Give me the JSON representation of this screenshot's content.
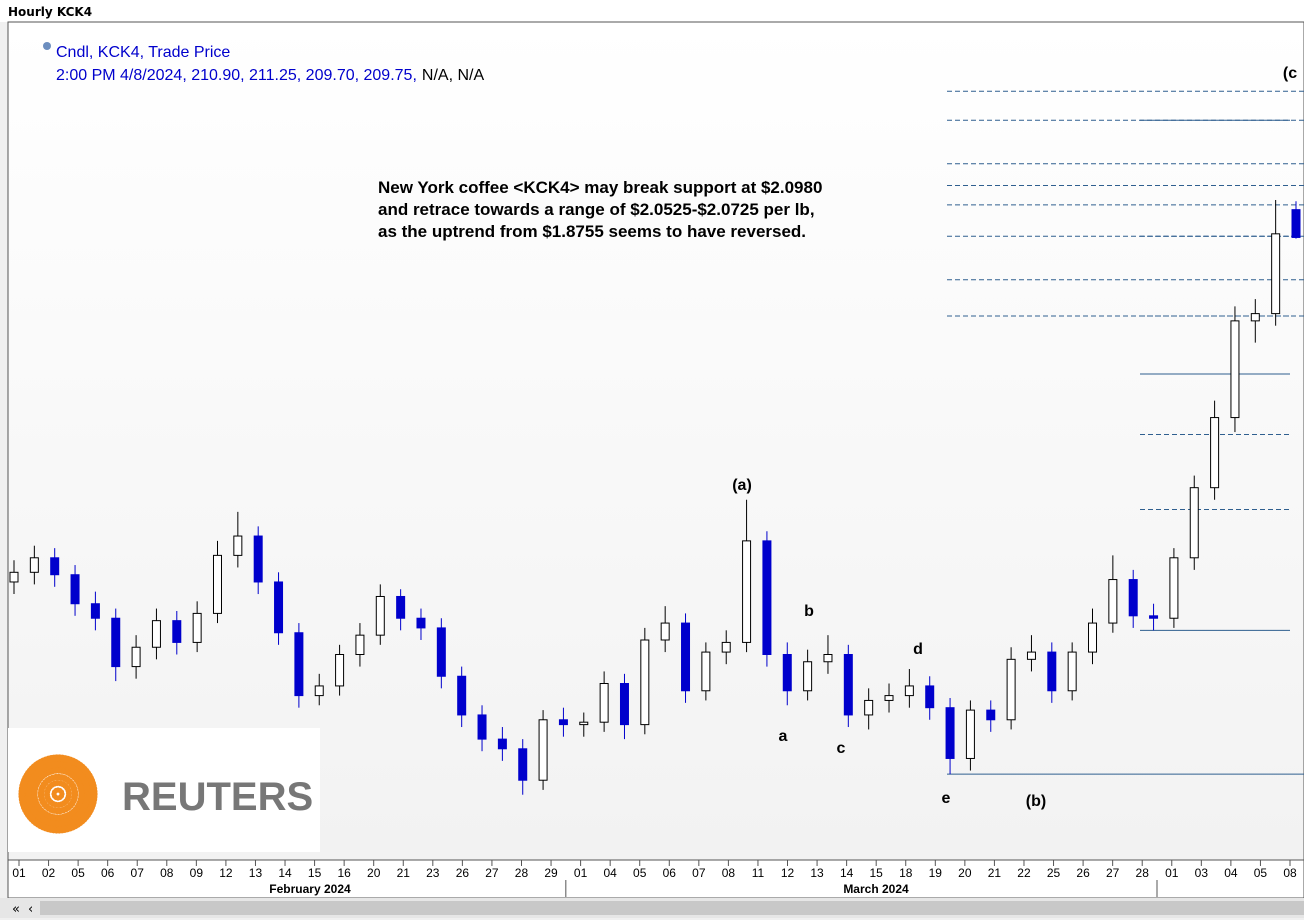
{
  "chart_data": {
    "type": "candlestick",
    "title": "Hourly KCK4",
    "legend_line1": "Cndl, KCK4, Trade Price",
    "legend_line2": "2:00 PM 4/8/2024, 210.90, 211.25, 209.70, 209.75,",
    "legend_line3": "N/A, N/A",
    "annotation": [
      "New York coffee <KCK4> may break support at $2.0980",
      "and retrace towards a range of $2.0525-$2.0725 per lb,",
      "as the uptrend from $1.8755 seems to have reversed."
    ],
    "wave_labels": [
      "(a)",
      "b",
      "a",
      "c",
      "d",
      "e",
      "(b)",
      "(c"
    ],
    "logo": "REUTERS",
    "x_labels": [
      "01",
      "02",
      "05",
      "06",
      "07",
      "08",
      "09",
      "12",
      "13",
      "14",
      "15",
      "16",
      "20",
      "21",
      "23",
      "26",
      "27",
      "28",
      "29",
      "01",
      "04",
      "05",
      "06",
      "07",
      "08",
      "11",
      "12",
      "13",
      "14",
      "15",
      "18",
      "19",
      "20",
      "21",
      "22",
      "25",
      "26",
      "27",
      "28",
      "01",
      "03",
      "04",
      "05",
      "08"
    ],
    "months": [
      "February 2024",
      "March 2024"
    ],
    "ylim": [
      184,
      218
    ],
    "up_color": "#000000",
    "down_color": "#0000cc",
    "level_color": "#2f5f8f",
    "levels_a": [
      215.8,
      214.6,
      212.8,
      211.9,
      211.1,
      209.8,
      208.0,
      206.5
    ],
    "levels_b": [
      214.6,
      209.8,
      206.5,
      204.1,
      201.6,
      198.5,
      193.5
    ],
    "support_level": 187.55,
    "open": [
      195.5,
      195.9,
      196.5,
      195.8,
      194.6,
      194.0,
      192.0,
      192.8,
      193.9,
      193.0,
      194.2,
      196.6,
      197.4,
      195.5,
      193.4,
      190.8,
      191.2,
      192.5,
      193.3,
      194.9,
      194.0,
      193.6,
      191.6,
      190.0,
      189.0,
      188.6,
      187.3,
      189.8,
      189.6,
      189.7,
      191.3,
      189.6,
      193.1,
      193.8,
      191.0,
      192.6,
      193.0,
      197.2,
      192.5,
      191.0,
      192.2,
      192.5,
      190.0,
      190.6,
      190.8,
      191.2,
      190.3,
      188.2,
      190.2,
      189.8,
      192.3,
      192.6,
      191.0,
      192.6,
      193.8,
      195.6,
      194.1,
      194.0,
      196.5,
      199.4,
      202.3,
      206.3,
      206.6,
      210.9
    ],
    "high": [
      196.4,
      197.0,
      196.9,
      196.2,
      195.1,
      194.4,
      193.3,
      194.4,
      194.3,
      194.7,
      197.2,
      198.4,
      197.8,
      195.9,
      193.8,
      191.7,
      192.9,
      193.8,
      195.4,
      195.2,
      194.4,
      194.0,
      192.0,
      190.4,
      189.5,
      189.0,
      190.2,
      190.3,
      190.1,
      191.8,
      191.7,
      193.6,
      194.5,
      194.2,
      193.0,
      193.5,
      198.9,
      197.6,
      193.0,
      192.7,
      193.3,
      192.9,
      191.1,
      191.3,
      191.9,
      191.6,
      190.7,
      190.6,
      190.6,
      192.8,
      193.3,
      193.0,
      193.0,
      194.4,
      196.6,
      196.0,
      194.6,
      196.9,
      199.9,
      203.0,
      206.9,
      207.2,
      211.3,
      211.25
    ],
    "low": [
      195.0,
      195.4,
      195.3,
      194.1,
      193.5,
      191.4,
      191.5,
      192.3,
      192.5,
      192.6,
      193.8,
      196.1,
      195.0,
      192.9,
      190.3,
      190.4,
      190.8,
      192.0,
      192.9,
      193.5,
      193.1,
      191.1,
      189.5,
      188.5,
      188.1,
      186.7,
      186.9,
      189.1,
      189.1,
      189.3,
      189.0,
      189.2,
      192.6,
      190.5,
      190.6,
      192.1,
      192.6,
      192.0,
      190.4,
      190.6,
      191.7,
      189.5,
      189.4,
      190.1,
      190.3,
      189.8,
      187.55,
      187.7,
      189.3,
      189.4,
      191.8,
      190.5,
      190.6,
      192.1,
      193.4,
      193.6,
      193.5,
      193.6,
      196.0,
      198.9,
      201.7,
      205.4,
      206.1,
      209.7
    ],
    "close": [
      195.9,
      196.5,
      195.8,
      194.6,
      194.0,
      192.0,
      192.8,
      193.9,
      193.0,
      194.2,
      196.6,
      197.4,
      195.5,
      193.4,
      190.8,
      191.2,
      192.5,
      193.3,
      194.9,
      194.0,
      193.6,
      191.6,
      190.0,
      189.0,
      188.6,
      187.3,
      189.8,
      189.6,
      189.7,
      191.3,
      189.6,
      193.1,
      193.8,
      191.0,
      192.6,
      193.0,
      197.2,
      192.5,
      191.0,
      192.2,
      192.5,
      190.0,
      190.6,
      190.8,
      191.2,
      190.3,
      188.2,
      190.2,
      189.8,
      192.3,
      192.6,
      191.0,
      192.6,
      193.8,
      195.6,
      194.1,
      194.0,
      196.5,
      199.4,
      202.3,
      206.3,
      206.6,
      209.9,
      209.75
    ]
  }
}
